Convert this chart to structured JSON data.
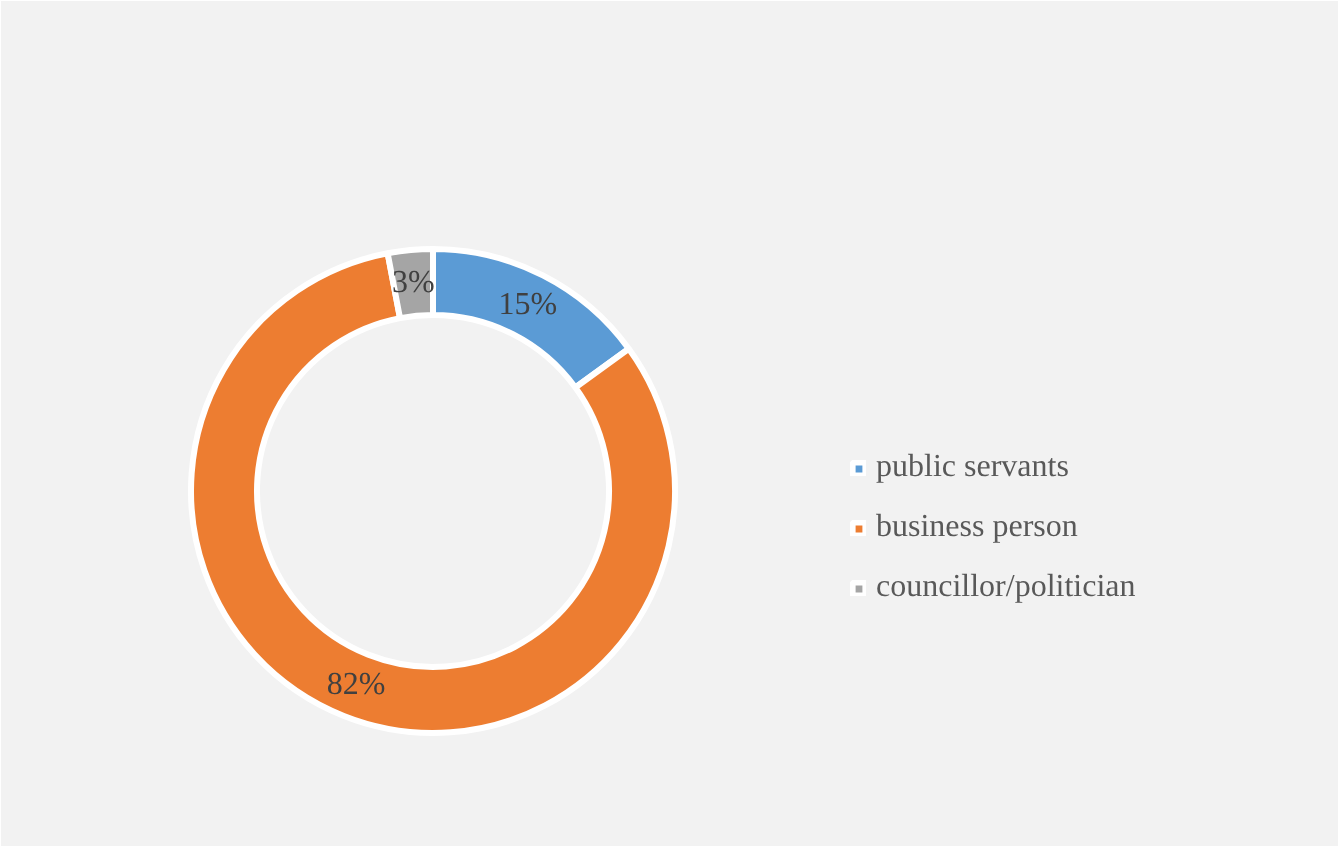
{
  "chart_data": {
    "type": "donut",
    "categories": [
      "public servants",
      "business person",
      "councillor/politician"
    ],
    "values": [
      15,
      82,
      3
    ],
    "colors": [
      "#5b9bd5",
      "#ed7d31",
      "#a5a5a5"
    ],
    "value_labels": [
      "15%",
      "82%",
      "3%"
    ],
    "legend": "right"
  }
}
